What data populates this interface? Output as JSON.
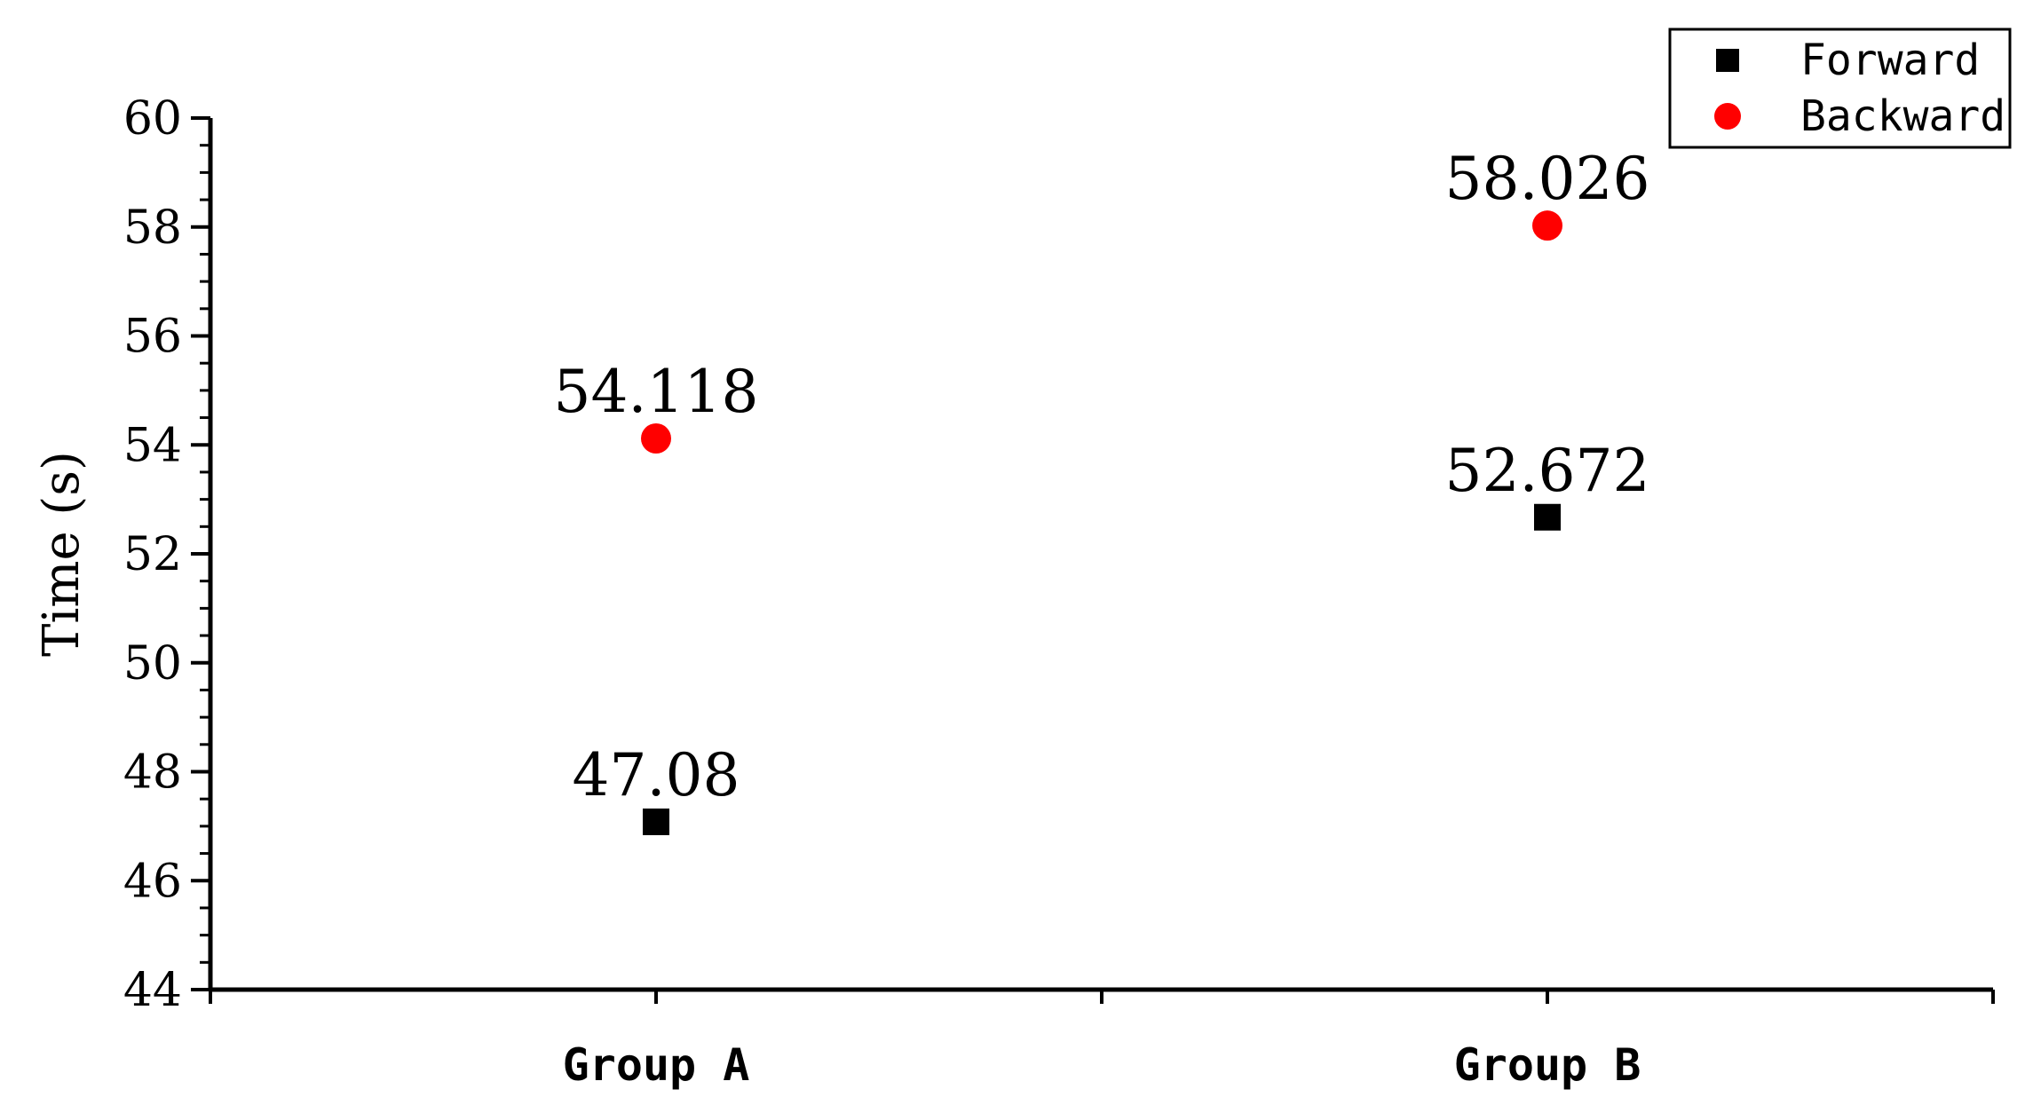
{
  "chart_data": {
    "type": "scatter",
    "categories": [
      "Group A",
      "Group B"
    ],
    "ylabel": "Time (s)",
    "ylim": [
      44,
      60
    ],
    "yticks": [
      44,
      46,
      48,
      50,
      52,
      54,
      56,
      58,
      60
    ],
    "grid": false,
    "legend_position": "top-right",
    "series": [
      {
        "name": "Forward",
        "marker": "square",
        "color": "#000000",
        "values": [
          47.08,
          52.672
        ],
        "labels": [
          "47.08",
          "52.672"
        ]
      },
      {
        "name": "Backward",
        "marker": "circle",
        "color": "#ff0000",
        "values": [
          54.118,
          58.026
        ],
        "labels": [
          "54.118",
          "58.026"
        ]
      }
    ]
  }
}
